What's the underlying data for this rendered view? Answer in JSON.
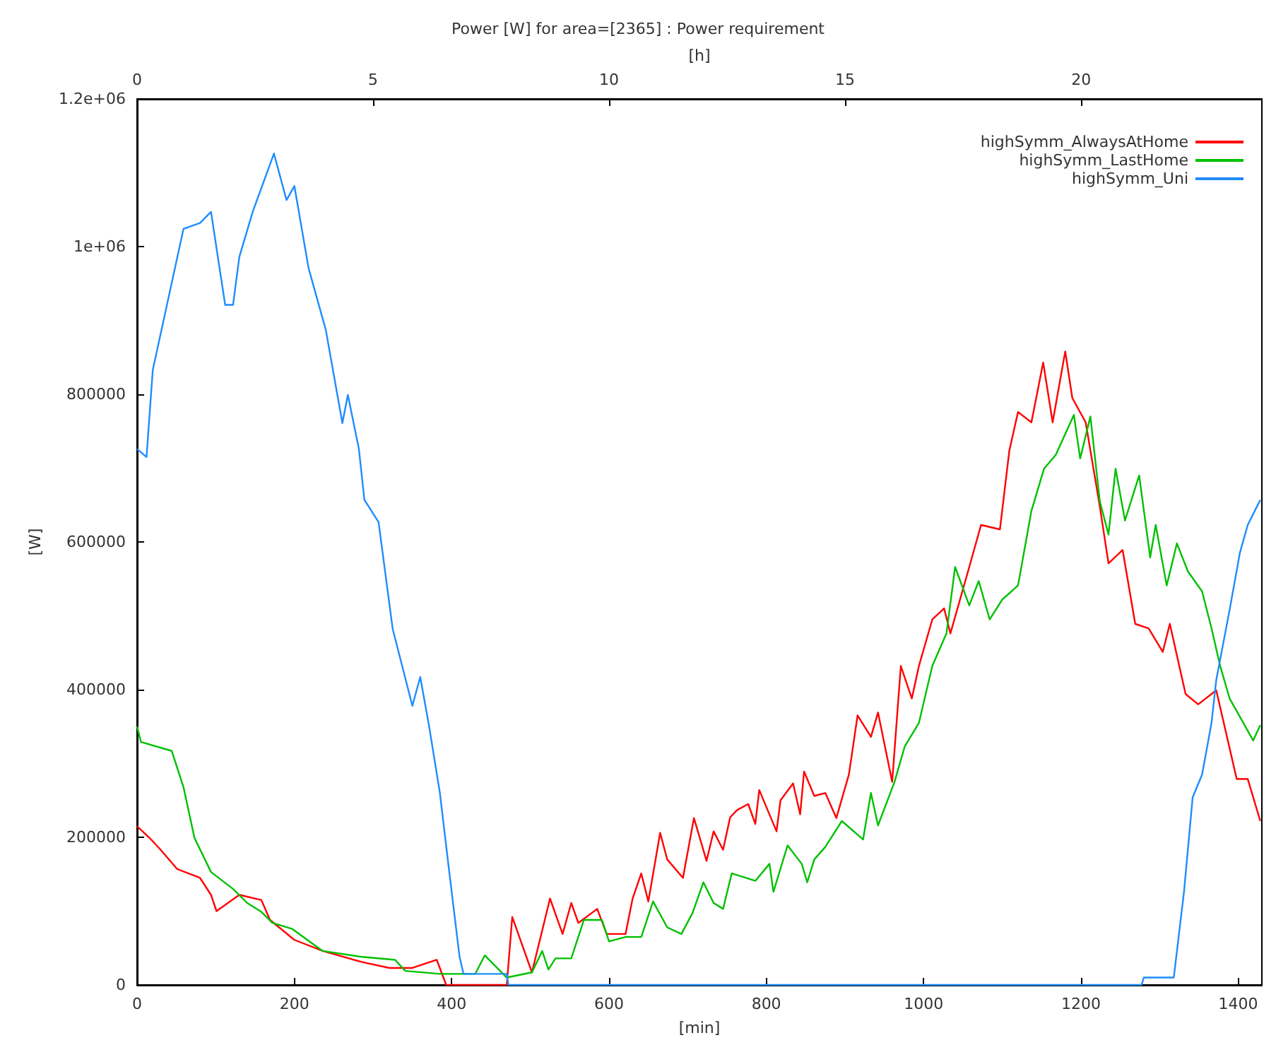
{
  "chart_data": {
    "type": "line",
    "title": "Power [W] for area=[2365] : Power requirement",
    "xlabel": "[min]",
    "x2label": "[h]",
    "ylabel": "[W]",
    "xlim": [
      0,
      1430
    ],
    "xticks": [
      0,
      200,
      400,
      600,
      800,
      1000,
      1200,
      1400
    ],
    "x2lim": [
      0,
      23.83
    ],
    "x2ticks": [
      0,
      5,
      10,
      15,
      20
    ],
    "ylim": [
      0,
      1200000
    ],
    "yticks": [
      0,
      200000,
      400000,
      600000,
      800000,
      {
        "value": 1000000,
        "label": "1e+06"
      },
      {
        "value": 1200000,
        "label": "1.2e+06"
      }
    ],
    "grid": false,
    "legend": "top right",
    "marker": "none",
    "line_style": "solid",
    "series": [
      {
        "name": "highSymm_AlwaysAtHome",
        "color": "#ff0000",
        "x": [
          0,
          16,
          30,
          51,
          80,
          94,
          101,
          130,
          158,
          169,
          200,
          236,
          286,
          321,
          350,
          381,
          393,
          400,
          470,
          477,
          502,
          525,
          541,
          552,
          561,
          585,
          597,
          621,
          630,
          641,
          650,
          665,
          674,
          694,
          708,
          724,
          733,
          745,
          754,
          763,
          777,
          786,
          791,
          813,
          818,
          834,
          843,
          848,
          861,
          875,
          889,
          905,
          916,
          933,
          942,
          960,
          971,
          985,
          994,
          1011,
          1026,
          1034,
          1058,
          1073,
          1097,
          1109,
          1120,
          1137,
          1152,
          1164,
          1180,
          1189,
          1206,
          1224,
          1235,
          1253,
          1269,
          1286,
          1304,
          1313,
          1333,
          1349,
          1372,
          1398,
          1412,
          1428
        ],
        "values": [
          215000,
          199000,
          183000,
          157000,
          145000,
          122000,
          100000,
          122000,
          115000,
          88000,
          61000,
          46000,
          31000,
          23000,
          23000,
          34000,
          0,
          0,
          0,
          92000,
          17000,
          117000,
          69000,
          111000,
          84000,
          103000,
          69000,
          69000,
          117000,
          151000,
          113000,
          206000,
          170000,
          145000,
          226000,
          168000,
          208000,
          183000,
          227000,
          237000,
          245000,
          218000,
          264000,
          208000,
          250000,
          273000,
          231000,
          289000,
          256000,
          260000,
          226000,
          285000,
          365000,
          336000,
          369000,
          275000,
          432000,
          388000,
          432000,
          495000,
          510000,
          476000,
          566000,
          623000,
          617000,
          724000,
          776000,
          762000,
          843000,
          762000,
          858000,
          795000,
          762000,
          648000,
          571000,
          589000,
          489000,
          483000,
          451000,
          489000,
          394000,
          380000,
          399000,
          279000,
          279000,
          222000
        ]
      },
      {
        "name": "highSymm_LastHome",
        "color": "#00c000",
        "x": [
          0,
          5,
          44,
          59,
          73,
          94,
          122,
          140,
          158,
          172,
          197,
          236,
          286,
          328,
          341,
          385,
          430,
          442,
          470,
          502,
          515,
          523,
          532,
          552,
          568,
          591,
          600,
          621,
          641,
          656,
          674,
          692,
          706,
          720,
          733,
          745,
          756,
          786,
          804,
          809,
          827,
          845,
          852,
          861,
          875,
          896,
          923,
          933,
          942,
          963,
          976,
          994,
          1011,
          1029,
          1040,
          1058,
          1070,
          1084,
          1100,
          1120,
          1137,
          1153,
          1168,
          1191,
          1199,
          1212,
          1224,
          1235,
          1244,
          1256,
          1274,
          1288,
          1295,
          1309,
          1322,
          1336,
          1354,
          1366,
          1377,
          1389,
          1419,
          1428
        ],
        "values": [
          350000,
          329000,
          317000,
          268000,
          199000,
          153000,
          130000,
          111000,
          99000,
          84000,
          76000,
          46000,
          38000,
          34000,
          19000,
          15000,
          15000,
          40000,
          10000,
          17000,
          46000,
          21000,
          36000,
          36000,
          88000,
          88000,
          59000,
          65000,
          65000,
          113000,
          78000,
          69000,
          97000,
          139000,
          111000,
          103000,
          151000,
          141000,
          164000,
          126000,
          189000,
          164000,
          139000,
          170000,
          187000,
          222000,
          197000,
          260000,
          216000,
          275000,
          323000,
          355000,
          432000,
          476000,
          566000,
          514000,
          547000,
          495000,
          522000,
          541000,
          642000,
          699000,
          718000,
          772000,
          713000,
          770000,
          655000,
          610000,
          699000,
          629000,
          690000,
          579000,
          623000,
          541000,
          598000,
          560000,
          533000,
          483000,
          432000,
          388000,
          331000,
          352000
        ]
      },
      {
        "name": "highSymm_Uni",
        "color": "#1e8cff",
        "x": [
          0,
          12,
          20,
          59,
          80,
          94,
          112,
          122,
          130,
          147,
          174,
          190,
          200,
          218,
          240,
          261,
          268,
          282,
          289,
          307,
          325,
          350,
          360,
          371,
          385,
          396,
          410,
          415,
          470,
          472,
          1277,
          1280,
          1318,
          1331,
          1342,
          1354,
          1366,
          1372,
          1389,
          1402,
          1412,
          1428
        ],
        "values": [
          726000,
          715000,
          833000,
          1024000,
          1032000,
          1047000,
          921000,
          921000,
          986000,
          1047000,
          1126000,
          1063000,
          1082000,
          971000,
          887000,
          761000,
          799000,
          726000,
          657000,
          627000,
          482000,
          378000,
          417000,
          352000,
          260000,
          161000,
          38000,
          15000,
          15000,
          0,
          0,
          10000,
          10000,
          126000,
          254000,
          285000,
          355000,
          413000,
          508000,
          585000,
          623000,
          657000
        ]
      }
    ]
  }
}
